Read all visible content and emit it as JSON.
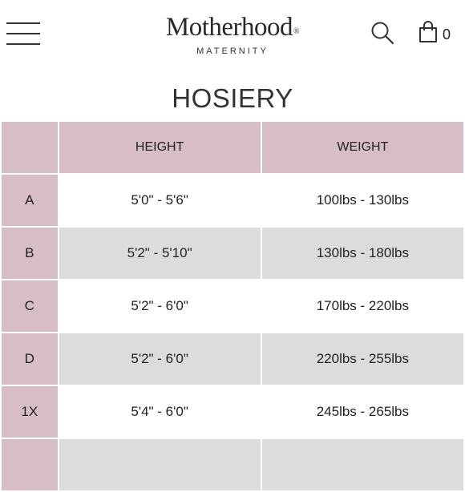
{
  "header": {
    "menu_icon": "hamburger-menu-icon",
    "logo_main": "Motherhood",
    "logo_reg": "®",
    "logo_sub": "MATERNITY",
    "search_icon": "search-icon",
    "cart_icon": "shopping-bag-icon",
    "cart_count": "0"
  },
  "page_title": "HOSIERY",
  "table": {
    "columns": [
      "",
      "HEIGHT",
      "WEIGHT"
    ],
    "rows": [
      {
        "size": "A",
        "height": "5'0\" - 5'6\"",
        "weight": "100lbs - 130lbs"
      },
      {
        "size": "B",
        "height": "5'2\" - 5'10\"",
        "weight": "130lbs - 180lbs"
      },
      {
        "size": "C",
        "height": "5'2\" - 6'0\"",
        "weight": "170lbs - 220lbs"
      },
      {
        "size": "D",
        "height": "5'2\" - 6'0\"",
        "weight": "220lbs - 255lbs"
      },
      {
        "size": "1X",
        "height": "5'4\" - 6'0\"",
        "weight": "245lbs - 265lbs"
      },
      {
        "size": "",
        "height": "",
        "weight": ""
      }
    ]
  },
  "colors": {
    "header_cell": "#d7bec4",
    "alt_row": "#dcdcdc",
    "text": "#222222"
  }
}
